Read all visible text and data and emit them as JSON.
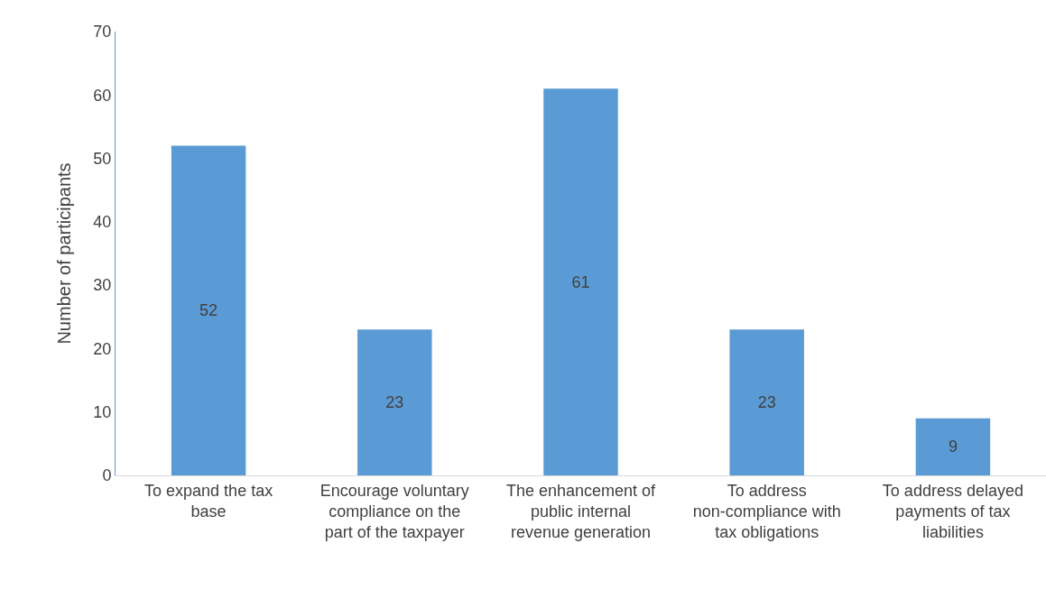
{
  "chart_data": {
    "type": "bar",
    "ylabel": "Number of participants",
    "categories": [
      "To expand the tax base",
      "Encourage voluntary compliance on the part of the taxpayer",
      "The enhancement of public internal revenue generation",
      "To address non-compliance with tax obligations",
      "To address delayed payments of tax liabilities"
    ],
    "values": [
      52,
      23,
      61,
      23,
      9
    ],
    "color": "#5b9bd5",
    "ylim": [
      0,
      70
    ],
    "yticks": [
      0,
      10,
      20,
      30,
      40,
      50,
      60,
      70
    ],
    "grid": false,
    "legend": false,
    "data_labels": true
  }
}
